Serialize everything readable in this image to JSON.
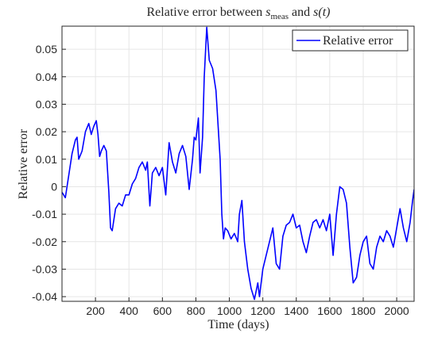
{
  "chart_data": {
    "type": "line",
    "title": [
      "Relative error between ",
      "s",
      "meas",
      " and ",
      "s(t)"
    ],
    "xlabel": "Time (days)",
    "ylabel": "Relative error",
    "legend": "northeast",
    "grid": true,
    "xlim": [
      0,
      2104
    ],
    "ylim": [
      -0.0417,
      0.0584
    ],
    "xticks": [
      200,
      400,
      600,
      800,
      1000,
      1200,
      1400,
      1600,
      1800,
      2000
    ],
    "yticks": [
      -0.04,
      -0.03,
      -0.02,
      -0.01,
      0,
      0.01,
      0.02,
      0.03,
      0.04,
      0.05
    ],
    "x": [
      0,
      20,
      40,
      60,
      80,
      90,
      100,
      120,
      140,
      160,
      175,
      190,
      205,
      215,
      225,
      235,
      250,
      265,
      280,
      290,
      300,
      320,
      340,
      360,
      380,
      400,
      420,
      440,
      460,
      480,
      500,
      510,
      525,
      540,
      560,
      580,
      600,
      620,
      640,
      660,
      680,
      700,
      720,
      740,
      760,
      780,
      790,
      800,
      815,
      825,
      840,
      850,
      865,
      880,
      900,
      920,
      930,
      945,
      955,
      965,
      975,
      990,
      1010,
      1030,
      1050,
      1060,
      1075,
      1090,
      1110,
      1130,
      1150,
      1170,
      1180,
      1200,
      1220,
      1240,
      1260,
      1280,
      1300,
      1320,
      1340,
      1360,
      1380,
      1400,
      1420,
      1440,
      1460,
      1480,
      1500,
      1520,
      1540,
      1560,
      1580,
      1600,
      1620,
      1640,
      1660,
      1680,
      1700,
      1720,
      1740,
      1760,
      1780,
      1800,
      1820,
      1840,
      1860,
      1880,
      1900,
      1920,
      1940,
      1960,
      1980,
      2000,
      2020,
      2040,
      2060,
      2080,
      2095,
      2104
    ],
    "series": [
      {
        "name": "Relative error",
        "color": "#0000ff",
        "values": [
          -0.002,
          -0.004,
          0.004,
          0.012,
          0.017,
          0.018,
          0.01,
          0.013,
          0.02,
          0.023,
          0.019,
          0.022,
          0.024,
          0.019,
          0.011,
          0.013,
          0.015,
          0.013,
          -0.002,
          -0.015,
          -0.016,
          -0.008,
          -0.006,
          -0.007,
          -0.003,
          -0.003,
          0.001,
          0.003,
          0.007,
          0.009,
          0.006,
          0.009,
          -0.007,
          0.005,
          0.007,
          0.004,
          0.007,
          -0.003,
          0.016,
          0.009,
          0.005,
          0.012,
          0.015,
          0.011,
          -0.001,
          0.01,
          0.018,
          0.017,
          0.025,
          0.005,
          0.018,
          0.04,
          0.058,
          0.046,
          0.043,
          0.035,
          0.025,
          0.01,
          -0.01,
          -0.019,
          -0.015,
          -0.016,
          -0.019,
          -0.017,
          -0.02,
          -0.01,
          -0.005,
          -0.02,
          -0.03,
          -0.037,
          -0.041,
          -0.035,
          -0.04,
          -0.03,
          -0.025,
          -0.02,
          -0.015,
          -0.028,
          -0.03,
          -0.018,
          -0.014,
          -0.013,
          -0.01,
          -0.015,
          -0.014,
          -0.02,
          -0.024,
          -0.018,
          -0.013,
          -0.012,
          -0.015,
          -0.012,
          -0.016,
          -0.01,
          -0.025,
          -0.01,
          0.0,
          -0.001,
          -0.006,
          -0.022,
          -0.035,
          -0.033,
          -0.025,
          -0.02,
          -0.018,
          -0.028,
          -0.03,
          -0.022,
          -0.018,
          -0.02,
          -0.016,
          -0.018,
          -0.022,
          -0.015,
          -0.008,
          -0.015,
          -0.02,
          -0.013,
          -0.005,
          -0.001
        ]
      }
    ]
  }
}
